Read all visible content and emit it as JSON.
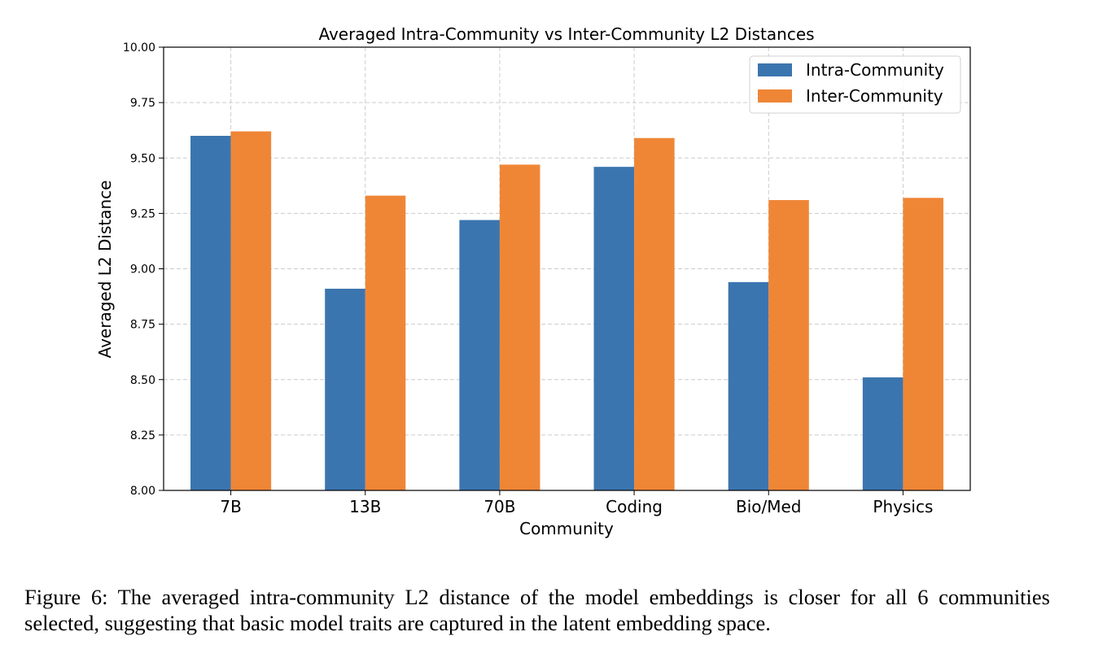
{
  "chart_data": {
    "type": "bar",
    "title": "Averaged Intra-Community vs Inter-Community L2 Distances",
    "xlabel": "Community",
    "ylabel": "Averaged L2 Distance",
    "categories": [
      "7B",
      "13B",
      "70B",
      "Coding",
      "Bio/Med",
      "Physics"
    ],
    "series": [
      {
        "name": "Intra-Community",
        "color": "#3b75af",
        "values": [
          9.6,
          8.91,
          9.22,
          9.46,
          8.94,
          8.51
        ]
      },
      {
        "name": "Inter-Community",
        "color": "#ef8636",
        "values": [
          9.62,
          9.33,
          9.47,
          9.59,
          9.31,
          9.32
        ]
      }
    ],
    "ylim": [
      8.0,
      10.0
    ],
    "yticks": [
      "8.00",
      "8.25",
      "8.50",
      "8.75",
      "9.00",
      "9.25",
      "9.50",
      "9.75",
      "10.00"
    ],
    "grid": true,
    "legend_position": "top-right"
  },
  "caption": "Figure 6: The averaged intra-community L2 distance of the model embeddings is closer for all 6 communities selected, suggesting that basic model traits are captured in the latent embedding space."
}
